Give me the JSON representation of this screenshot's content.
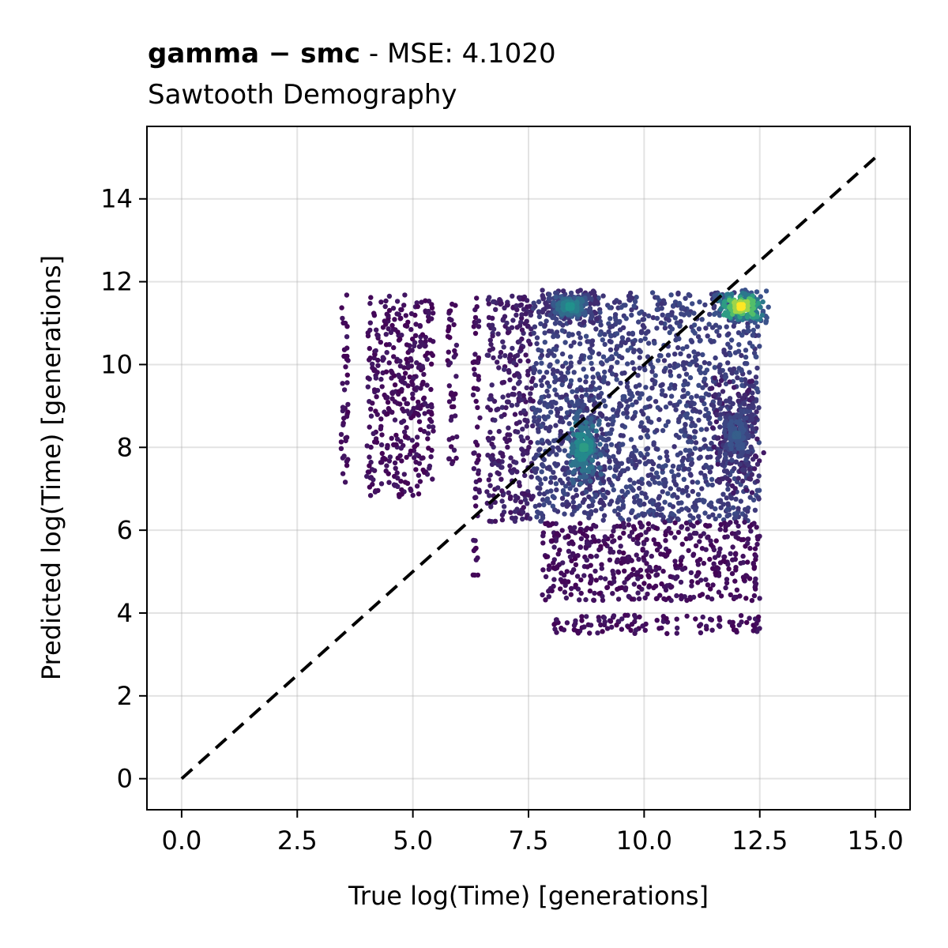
{
  "chart_data": {
    "type": "scatter",
    "title_bold": "gamma − smc",
    "title_rest": " - MSE: 4.1020",
    "subtitle": "Sawtooth Demography",
    "xlabel": "True log(Time) [generations]",
    "ylabel": "Predicted log(Time) [generations]",
    "xlim": [
      -0.75,
      15.75
    ],
    "ylim": [
      -0.75,
      15.75
    ],
    "xticks": [
      0.0,
      2.5,
      5.0,
      7.5,
      10.0,
      12.5,
      15.0
    ],
    "xtick_labels": [
      "0.0",
      "2.5",
      "5.0",
      "7.5",
      "10.0",
      "12.5",
      "15.0"
    ],
    "yticks": [
      0,
      2,
      4,
      6,
      8,
      10,
      12,
      14
    ],
    "ytick_labels": [
      "0",
      "2",
      "4",
      "6",
      "8",
      "10",
      "12",
      "14"
    ],
    "grid": true,
    "colormap": "viridis",
    "colors": {
      "low": "#440154",
      "mid": "#21918c",
      "high": "#fde725",
      "identity_line": "#000000"
    },
    "identity_line": {
      "x": [
        0,
        15
      ],
      "y": [
        0,
        15
      ],
      "style": "dashed"
    },
    "point_regions": [
      {
        "x": [
          3.45,
          3.6
        ],
        "y": [
          6.7,
          11.7
        ],
        "density": 0.0
      },
      {
        "x": [
          4.0,
          4.25
        ],
        "y": [
          6.8,
          11.7
        ],
        "density": 0.0
      },
      {
        "x": [
          4.3,
          4.7
        ],
        "y": [
          7.0,
          11.7
        ],
        "density": 0.0
      },
      {
        "x": [
          4.7,
          5.2
        ],
        "y": [
          6.8,
          11.7
        ],
        "density": 0.0
      },
      {
        "x": [
          5.2,
          5.45
        ],
        "y": [
          7.2,
          11.7
        ],
        "density": 0.0
      },
      {
        "x": [
          5.75,
          5.95
        ],
        "y": [
          7.6,
          11.5
        ],
        "density": 0.0
      },
      {
        "x": [
          6.3,
          6.45
        ],
        "y": [
          4.8,
          11.7
        ],
        "density": 0.0
      },
      {
        "x": [
          6.6,
          7.6
        ],
        "y": [
          6.2,
          11.7
        ],
        "density": 0.05
      },
      {
        "x": [
          7.6,
          12.5
        ],
        "y": [
          6.2,
          11.75
        ],
        "density": 0.15
      },
      {
        "x": [
          7.8,
          12.5
        ],
        "y": [
          4.3,
          6.2
        ],
        "density": 0.0
      },
      {
        "x": [
          8.0,
          12.5
        ],
        "y": [
          3.5,
          3.95
        ],
        "density": 0.0
      }
    ],
    "hotspots": [
      {
        "x": 12.1,
        "y": 11.4,
        "density": 1.0
      },
      {
        "x": 8.7,
        "y": 8.0,
        "density": 0.55
      },
      {
        "x": 8.4,
        "y": 11.4,
        "density": 0.5
      },
      {
        "x": 12.0,
        "y": 8.3,
        "density": 0.3
      }
    ]
  }
}
